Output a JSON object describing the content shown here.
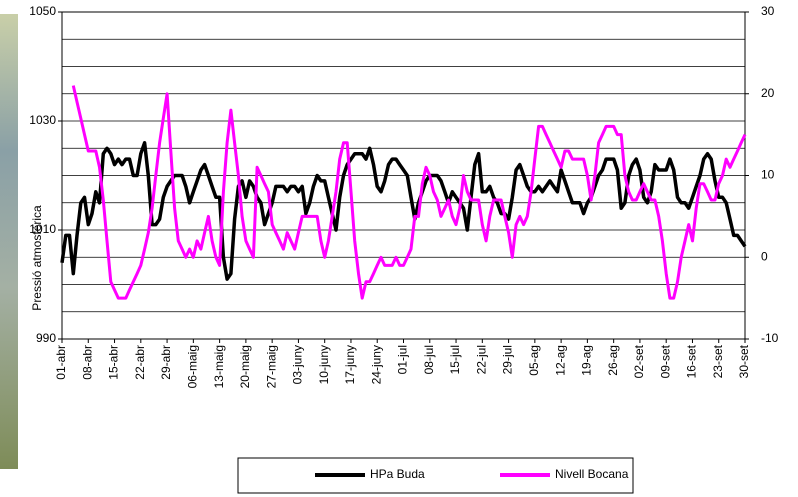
{
  "chart_data": {
    "type": "line",
    "y_label": "Pressió atmosfèrica",
    "categories": [
      "01-abr",
      null,
      null,
      null,
      null,
      null,
      null,
      "08-abr",
      null,
      null,
      null,
      null,
      null,
      null,
      "15-abr",
      null,
      null,
      null,
      null,
      null,
      null,
      "22-abr",
      null,
      null,
      null,
      null,
      null,
      null,
      "29-abr",
      null,
      null,
      null,
      null,
      null,
      null,
      "06-maig",
      null,
      null,
      null,
      null,
      null,
      null,
      "13-maig",
      null,
      null,
      null,
      null,
      null,
      null,
      "20-maig",
      null,
      null,
      null,
      null,
      null,
      null,
      "27-maig",
      null,
      null,
      null,
      null,
      null,
      null,
      "03-juny",
      null,
      null,
      null,
      null,
      null,
      null,
      "10-juny",
      null,
      null,
      null,
      null,
      null,
      null,
      "17-juny",
      null,
      null,
      null,
      null,
      null,
      null,
      "24-juny",
      null,
      null,
      null,
      null,
      null,
      null,
      "01-jul",
      null,
      null,
      null,
      null,
      null,
      null,
      "08-jul",
      null,
      null,
      null,
      null,
      null,
      null,
      "15-jul",
      null,
      null,
      null,
      null,
      null,
      null,
      "22-jul",
      null,
      null,
      null,
      null,
      null,
      null,
      "29-jul",
      null,
      null,
      null,
      null,
      null,
      null,
      "05-ag",
      null,
      null,
      null,
      null,
      null,
      null,
      "12-ag",
      null,
      null,
      null,
      null,
      null,
      null,
      "19-ag",
      null,
      null,
      null,
      null,
      null,
      null,
      "26-ag",
      null,
      null,
      null,
      null,
      null,
      null,
      "02-set",
      null,
      null,
      null,
      null,
      null,
      null,
      "09-set",
      null,
      null,
      null,
      null,
      null,
      null,
      "16-set",
      null,
      null,
      null,
      null,
      null,
      null,
      "23-set",
      null,
      null,
      null,
      null,
      null,
      null,
      "30-set"
    ],
    "series": [
      {
        "name": "HPa Buda",
        "color": "#000000",
        "axis": "y",
        "values": [
          1004,
          1009,
          1009,
          1002,
          1009,
          1015,
          1016,
          1011,
          1013,
          1017,
          1015,
          1024,
          1025,
          1024,
          1022,
          1023,
          1022,
          1023,
          1023,
          1020,
          1020,
          1024,
          1026,
          1020,
          1011,
          1011,
          1012,
          1016,
          1018,
          1019,
          1020,
          1020,
          1020,
          1018,
          1015,
          1017,
          1019,
          1021,
          1022,
          1020,
          1018,
          1016,
          1016,
          1005,
          1001,
          1002,
          1012,
          1018,
          1019,
          1016,
          1019,
          1018,
          1016,
          1015,
          1011,
          1013,
          1015,
          1018,
          1018,
          1018,
          1017,
          1018,
          1018,
          1017,
          1018,
          1013,
          1015,
          1018,
          1020,
          1019,
          1019,
          1016,
          1013,
          1010,
          1016,
          1020,
          1022,
          1023,
          1024,
          1024,
          1024,
          1023,
          1025,
          1022,
          1018,
          1017,
          1019,
          1022,
          1023,
          1023,
          1022,
          1021,
          1020,
          1016,
          1012,
          1015,
          1017,
          1019,
          1020,
          1020,
          1020,
          1019,
          1017,
          1015,
          1017,
          1016,
          1015,
          1014,
          1010,
          1016,
          1022,
          1024,
          1017,
          1017,
          1018,
          1016,
          1015,
          1013,
          1013,
          1012,
          1016,
          1021,
          1022,
          1020,
          1018,
          1017,
          1017,
          1018,
          1017,
          1018,
          1019,
          1018,
          1017,
          1021,
          1019,
          1017,
          1015,
          1015,
          1015,
          1013,
          1015,
          1016,
          1018,
          1020,
          1021,
          1023,
          1023,
          1023,
          1021,
          1014,
          1015,
          1020,
          1022,
          1023,
          1021,
          1016,
          1015,
          1017,
          1022,
          1021,
          1021,
          1021,
          1023,
          1021,
          1016,
          1015,
          1015,
          1014,
          1016,
          1018,
          1020,
          1023,
          1024,
          1023,
          1019,
          1016,
          1016,
          1015,
          1012,
          1009,
          1009,
          1008,
          1007
        ]
      },
      {
        "name": "Nivell Bocana",
        "color": "#ff00ff",
        "axis": "y2",
        "values": [
          null,
          null,
          null,
          21,
          19,
          17,
          15,
          13,
          13,
          13,
          11,
          7,
          2,
          -3,
          -4,
          -5,
          -5,
          -5,
          -4,
          -3,
          -2,
          -1,
          1,
          3,
          6,
          10,
          14,
          17,
          20,
          13,
          6,
          2,
          1,
          0,
          1,
          0,
          2,
          1,
          3,
          5,
          2,
          0,
          -1,
          8,
          14,
          18,
          14,
          10,
          5,
          2,
          1,
          0,
          11,
          10,
          9,
          8,
          4,
          3,
          2,
          1,
          3,
          2,
          1,
          3,
          5,
          5,
          5,
          5,
          5,
          2,
          0,
          2,
          5,
          8,
          12,
          14,
          14,
          8,
          2,
          -2,
          -5,
          -3,
          -3,
          -2,
          -1,
          0,
          -1,
          -1,
          -1,
          0,
          -1,
          -1,
          0,
          1,
          5,
          5,
          9,
          11,
          10,
          8,
          7,
          5,
          6,
          7,
          5,
          4,
          6,
          10,
          8,
          7,
          7,
          7,
          4,
          2,
          5,
          7,
          7,
          7,
          5,
          3,
          0,
          4,
          5,
          4,
          5,
          8,
          12,
          16,
          16,
          15,
          14,
          13,
          12,
          11,
          13,
          13,
          12,
          12,
          12,
          12,
          10,
          7,
          10,
          14,
          15,
          16,
          16,
          16,
          15,
          15,
          10,
          8,
          7,
          7,
          8,
          9,
          8,
          7,
          7,
          5,
          2,
          -2,
          -5,
          -5,
          -3,
          0,
          2,
          4,
          2,
          6,
          9,
          9,
          8,
          7,
          7,
          9,
          10,
          12,
          11,
          12,
          13,
          14,
          15
        ]
      }
    ],
    "ylim": [
      990,
      1050
    ],
    "yticks": [
      990,
      1010,
      1030,
      1050
    ],
    "ygrid": [
      995,
      1000,
      1005,
      1010,
      1015,
      1020,
      1025,
      1030,
      1035,
      1040,
      1045
    ],
    "y2lim": [
      -10,
      30
    ],
    "y2ticks": [
      -10,
      0,
      10,
      20,
      30
    ]
  }
}
